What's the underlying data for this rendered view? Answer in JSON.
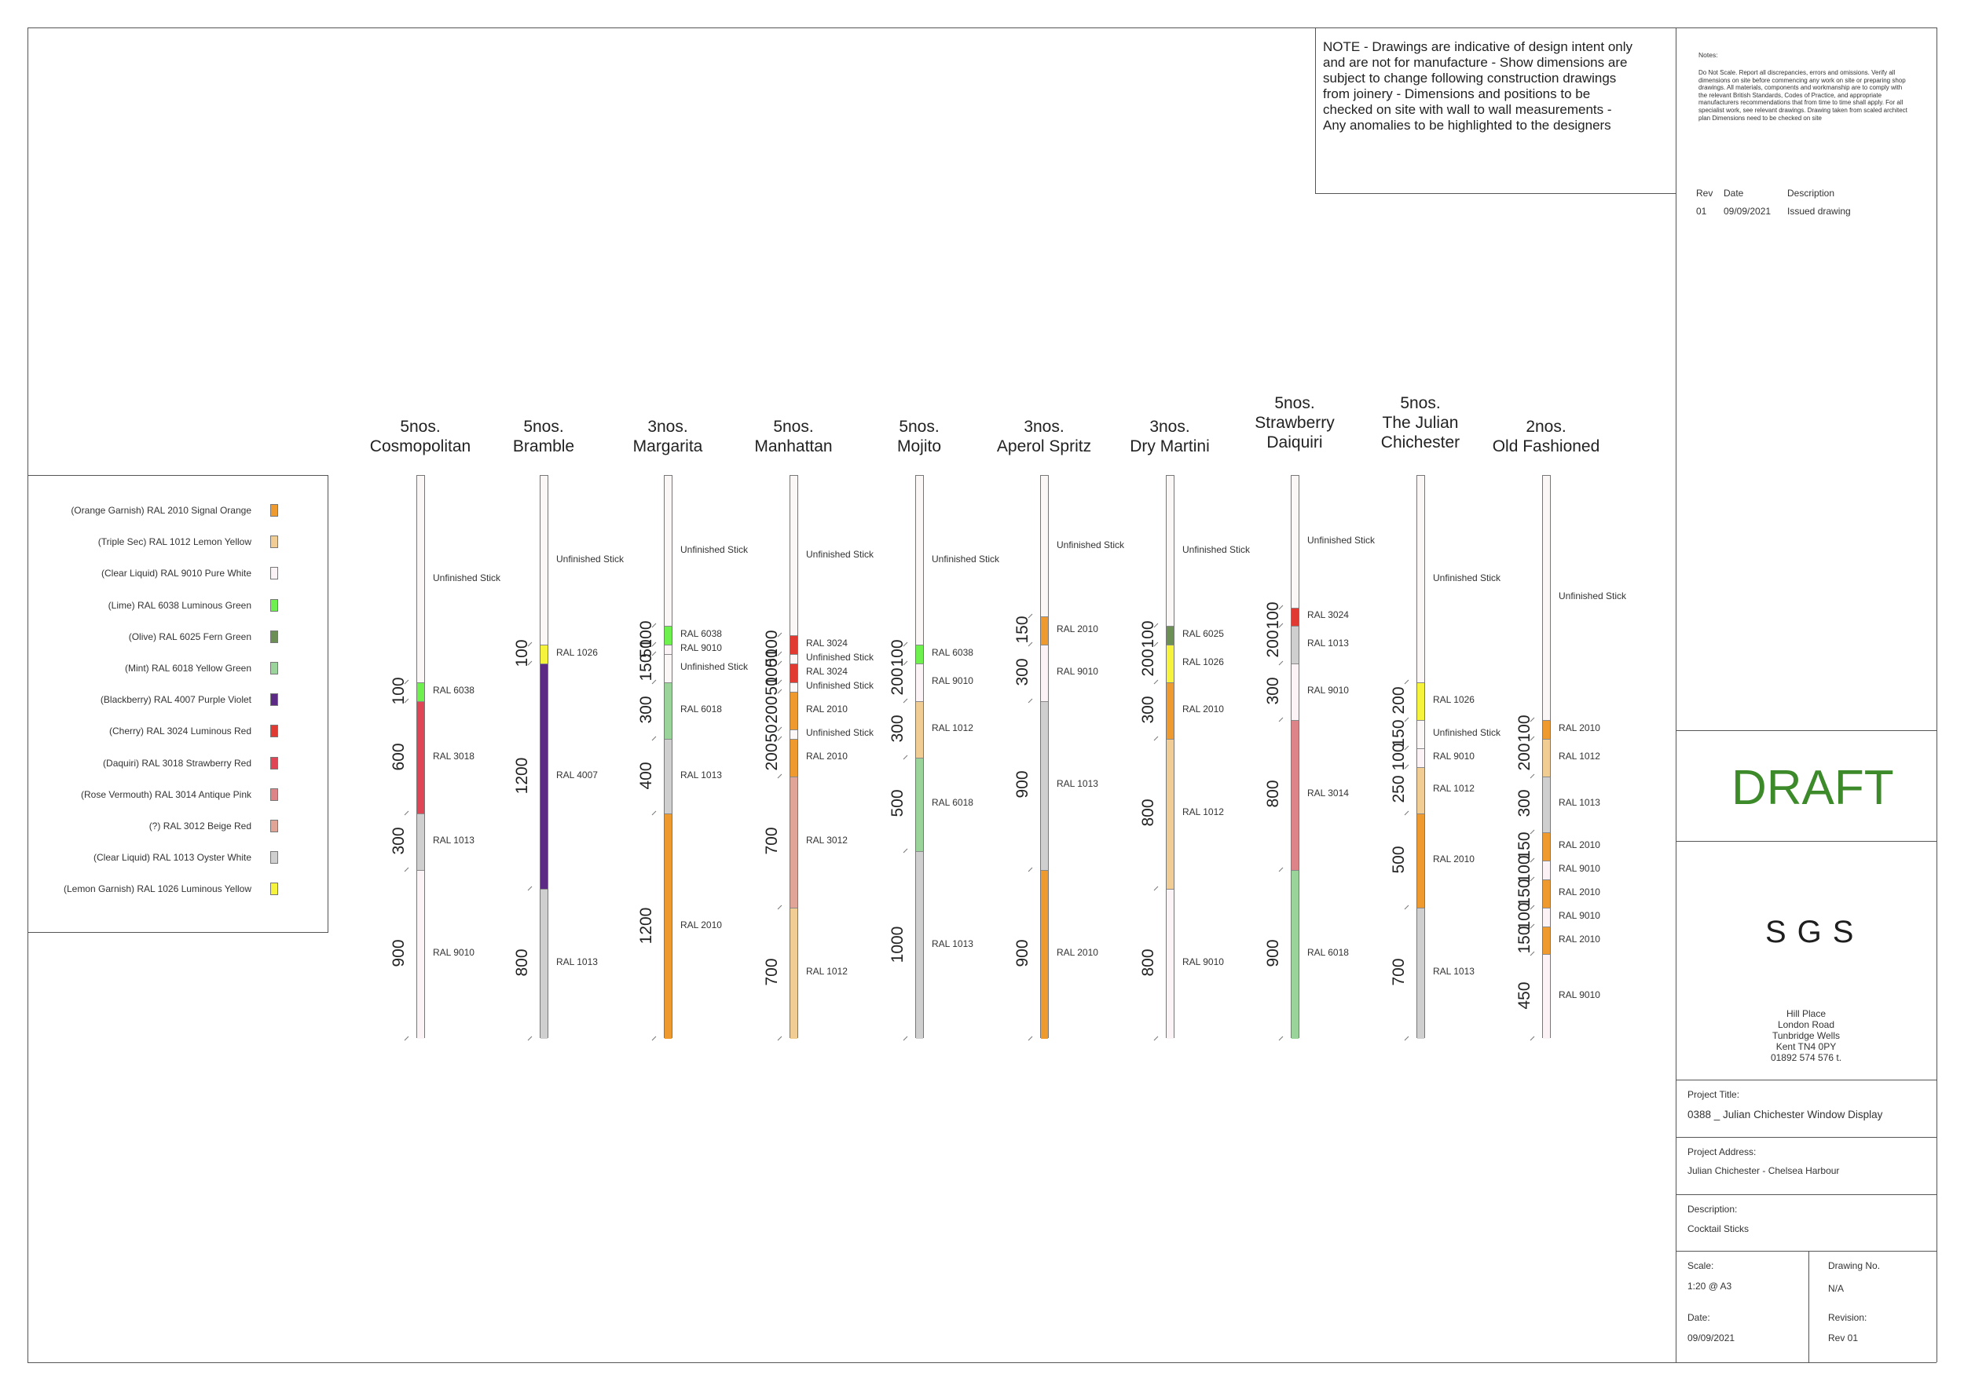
{
  "note": "NOTE - Drawings are indicative of design intent only  and are   not for manufacture - Show dimensions are  subject to change following construction drawings  from joinery - Dimensions and positions to be  checked on site with wall to wall measurements - Any  anomalies to be highlighted to the designers",
  "notes_heading": "Notes:",
  "notes_body": "Do Not Scale. Report all discrepancies, errors and omissions. Verify all dimensions on site before commencing any work on site or preparing shop drawings. All materials, components and workmanship are to comply with the relevant British Standards, Codes of Practice, and appropriate manufacturers recommendations that from time to time shall apply. For all specialist work, see relevant drawings. Drawing taken from scaled architect plan Dimensions need to be checked on site",
  "revisions": {
    "headers": [
      "Rev",
      "Date",
      "Description"
    ],
    "rows": [
      [
        "01",
        "09/09/2021",
        "Issued drawing"
      ]
    ]
  },
  "draft_label": "DRAFT",
  "logo_text": "SGS",
  "address_lines": [
    "Hill Place",
    "London Road",
    "Tunbridge Wells",
    "Kent TN4 0PY",
    "01892 574 576 t."
  ],
  "title_block": {
    "project_title_label": "Project Title:",
    "project_title": "0388 _ Julian Chichester Window Display",
    "project_address_label": "Project Address:",
    "project_address": "Julian Chichester - Chelsea Harbour",
    "description_label": "Description:",
    "description": "Cocktail Sticks",
    "scale_label": "Scale:",
    "scale": "1:20 @ A3",
    "drawing_no_label": "Drawing No.",
    "drawing_no": "N/A",
    "date_label": "Date:",
    "date": "09/09/2021",
    "revision_label": "Revision:",
    "revision": "Rev 01"
  },
  "colors": {
    "RAL 2010": "#ef9a2e",
    "RAL 1012": "#f2cd93",
    "RAL 9010": "#fbf3f5",
    "RAL 6038": "#6ef04f",
    "RAL 6025": "#6b8f55",
    "RAL 6018": "#9ad49a",
    "RAL 4007": "#5c2a85",
    "RAL 3024": "#e03a33",
    "RAL 3018": "#e04556",
    "RAL 3014": "#dc8488",
    "RAL 3012": "#e0a596",
    "RAL 1013": "#cfcfcf",
    "RAL 1026": "#f6f33c",
    "Unfinished Stick": "#fbf7f7"
  },
  "legend": [
    {
      "label": "(Orange Garnish) RAL 2010 Signal Orange",
      "code": "RAL 2010"
    },
    {
      "label": "(Triple Sec) RAL 1012 Lemon Yellow",
      "code": "RAL 1012"
    },
    {
      "label": "(Clear Liquid) RAL 9010 Pure White",
      "code": "RAL 9010"
    },
    {
      "label": "(Lime) RAL 6038 Luminous Green",
      "code": "RAL 6038"
    },
    {
      "label": "(Olive) RAL 6025 Fern Green",
      "code": "RAL 6025"
    },
    {
      "label": "(Mint) RAL 6018 Yellow Green",
      "code": "RAL 6018"
    },
    {
      "label": "(Blackberry) RAL 4007 Purple Violet",
      "code": "RAL 4007"
    },
    {
      "label": "(Cherry) RAL 3024 Luminous Red",
      "code": "RAL 3024"
    },
    {
      "label": "(Daquiri) RAL 3018 Strawberry Red",
      "code": "RAL 3018"
    },
    {
      "label": "(Rose Vermouth) RAL 3014 Antique Pink",
      "code": "RAL 3014"
    },
    {
      "label": "(?) RAL 3012 Beige Red",
      "code": "RAL 3012"
    },
    {
      "label": "(Clear Liquid) RAL 1013 Oyster White",
      "code": "RAL 1013"
    },
    {
      "label": "(Lemon Garnish) RAL 1026 Luminous Yellow",
      "code": "RAL 1026"
    }
  ],
  "sticks": [
    {
      "title": [
        "5nos.",
        "Cosmopolitan"
      ],
      "segments": [
        {
          "code": "Unfinished Stick"
        },
        {
          "code": "RAL 6038",
          "dim": "100"
        },
        {
          "code": "RAL 3018",
          "dim": "600"
        },
        {
          "code": "RAL 1013",
          "dim": "300"
        },
        {
          "code": "RAL 9010",
          "dim": "900"
        }
      ]
    },
    {
      "title": [
        "5nos.",
        "Bramble"
      ],
      "segments": [
        {
          "code": "Unfinished Stick"
        },
        {
          "code": "RAL 1026",
          "dim": "100"
        },
        {
          "code": "RAL 4007",
          "dim": "1200"
        },
        {
          "code": "RAL 1013",
          "dim": "800"
        }
      ]
    },
    {
      "title": [
        "3nos.",
        "Margarita"
      ],
      "segments": [
        {
          "code": "Unfinished Stick"
        },
        {
          "code": "RAL 6038",
          "dim": "100"
        },
        {
          "code": "RAL 9010",
          "dim": "50"
        },
        {
          "code": "Unfinished Stick",
          "dim": "150"
        },
        {
          "code": "RAL 6018",
          "dim": "300"
        },
        {
          "code": "RAL 1013",
          "dim": "400"
        },
        {
          "code": "RAL 2010",
          "dim": "1200"
        }
      ]
    },
    {
      "title": [
        "5nos.",
        "Manhattan"
      ],
      "segments": [
        {
          "code": "Unfinished Stick"
        },
        {
          "code": "RAL 3024",
          "dim": "100"
        },
        {
          "code": "Unfinished Stick",
          "dim": "50"
        },
        {
          "code": "RAL 3024",
          "dim": "100"
        },
        {
          "code": "Unfinished Stick",
          "dim": "50"
        },
        {
          "code": "RAL 2010",
          "dim": "200"
        },
        {
          "code": "Unfinished Stick",
          "dim": "50"
        },
        {
          "code": "RAL 2010",
          "dim": "200"
        },
        {
          "code": "RAL 3012",
          "dim": "700"
        },
        {
          "code": "RAL 1012",
          "dim": "700"
        }
      ]
    },
    {
      "title": [
        "5nos.",
        "Mojito"
      ],
      "segments": [
        {
          "code": "Unfinished Stick"
        },
        {
          "code": "RAL 6038",
          "dim": "100"
        },
        {
          "code": "RAL 9010",
          "dim": "200"
        },
        {
          "code": "RAL 1012",
          "dim": "300"
        },
        {
          "code": "RAL 6018",
          "dim": "500"
        },
        {
          "code": "RAL 1013",
          "dim": "1000"
        }
      ]
    },
    {
      "title": [
        "3nos.",
        "Aperol Spritz"
      ],
      "segments": [
        {
          "code": "Unfinished Stick"
        },
        {
          "code": "RAL 2010",
          "dim": "150"
        },
        {
          "code": "RAL 9010",
          "dim": "300"
        },
        {
          "code": "RAL 1013",
          "dim": "900"
        },
        {
          "code": "RAL 2010",
          "dim": "900"
        }
      ]
    },
    {
      "title": [
        "3nos.",
        "Dry Martini"
      ],
      "segments": [
        {
          "code": "Unfinished Stick"
        },
        {
          "code": "RAL 6025",
          "dim": "100"
        },
        {
          "code": "RAL 1026",
          "dim": "200"
        },
        {
          "code": "RAL 2010",
          "dim": "300"
        },
        {
          "code": "RAL 1012",
          "dim": "800"
        },
        {
          "code": "RAL 9010",
          "dim": "800"
        }
      ]
    },
    {
      "title": [
        "5nos.",
        "Strawberry",
        "Daiquiri"
      ],
      "segments": [
        {
          "code": "Unfinished Stick"
        },
        {
          "code": "RAL 3024",
          "dim": "100"
        },
        {
          "code": "RAL 1013",
          "dim": "200"
        },
        {
          "code": "RAL 9010",
          "dim": "300"
        },
        {
          "code": "RAL 3014",
          "dim": "800"
        },
        {
          "code": "RAL 6018",
          "dim": "900"
        }
      ]
    },
    {
      "title": [
        "5nos.",
        "The Julian",
        "Chichester"
      ],
      "segments": [
        {
          "code": "Unfinished Stick"
        },
        {
          "code": "RAL 1026",
          "dim": "200"
        },
        {
          "code": "Unfinished Stick",
          "dim": "150"
        },
        {
          "code": "RAL 9010",
          "dim": "100"
        },
        {
          "code": "RAL 1012",
          "dim": "250"
        },
        {
          "code": "RAL 2010",
          "dim": "500"
        },
        {
          "code": "RAL 1013",
          "dim": "700"
        }
      ]
    },
    {
      "title": [
        "2nos.",
        "Old Fashioned"
      ],
      "segments": [
        {
          "code": "Unfinished Stick"
        },
        {
          "code": "RAL 2010",
          "dim": "100"
        },
        {
          "code": "RAL 1012",
          "dim": "200"
        },
        {
          "code": "RAL 1013",
          "dim": "300"
        },
        {
          "code": "RAL 2010",
          "dim": "150"
        },
        {
          "code": "RAL 9010",
          "dim": "100"
        },
        {
          "code": "RAL 2010",
          "dim": "150"
        },
        {
          "code": "RAL 9010",
          "dim": "100"
        },
        {
          "code": "RAL 2010",
          "dim": "150"
        },
        {
          "code": "RAL 9010",
          "dim": "450"
        }
      ]
    }
  ]
}
